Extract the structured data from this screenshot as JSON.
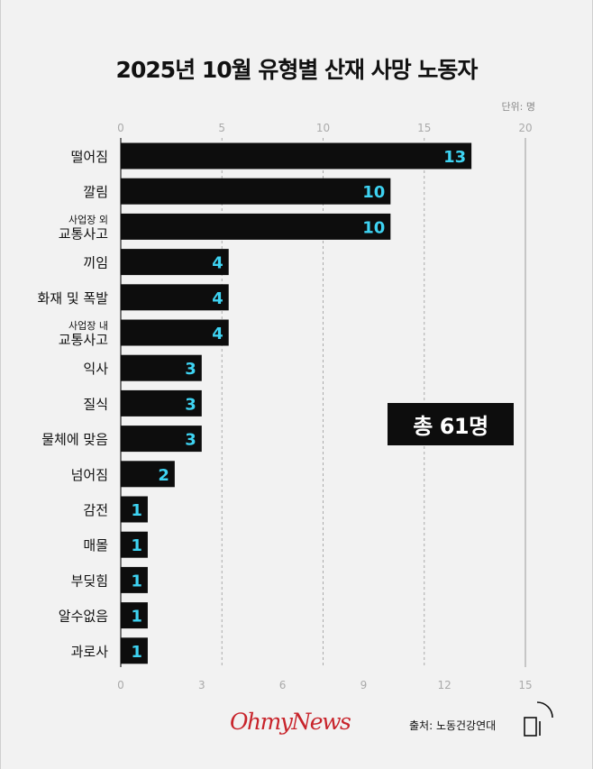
{
  "header": {
    "title": "2025년 10월 유형별 산재 사망 노동자",
    "unit": "단위: 명"
  },
  "total_badge": "총 61명",
  "footer": {
    "brand": "OhmyNews",
    "source": "출처: 노동건강연대"
  },
  "colors": {
    "bar": "#0d0d0d",
    "value_label": "#3ed3f2",
    "grid": "#aaaaaa",
    "brand": "#c8242b"
  },
  "chart_data": {
    "type": "bar",
    "orientation": "horizontal",
    "title": "2025년 10월 유형별 산재 사망 노동자",
    "unit": "명",
    "categories": [
      [
        "떨어짐"
      ],
      [
        "깔림"
      ],
      [
        "사업장 외",
        "교통사고"
      ],
      [
        "끼임"
      ],
      [
        "화재 및 폭발"
      ],
      [
        "사업장 내",
        "교통사고"
      ],
      [
        "익사"
      ],
      [
        "질식"
      ],
      [
        "물체에 맞음"
      ],
      [
        "넘어짐"
      ],
      [
        "감전"
      ],
      [
        "매몰"
      ],
      [
        "부딪힘"
      ],
      [
        "알수없음"
      ],
      [
        "과로사"
      ]
    ],
    "values": [
      13,
      10,
      10,
      4,
      4,
      4,
      3,
      3,
      3,
      2,
      1,
      1,
      1,
      1,
      1
    ],
    "top_axis": {
      "ticks": [
        "0",
        "5",
        "10",
        "15",
        "20"
      ]
    },
    "bottom_axis": {
      "ticks": [
        "0",
        "3",
        "6",
        "9",
        "12",
        "15"
      ]
    },
    "xlim": [
      0,
      15
    ],
    "grid": true
  }
}
